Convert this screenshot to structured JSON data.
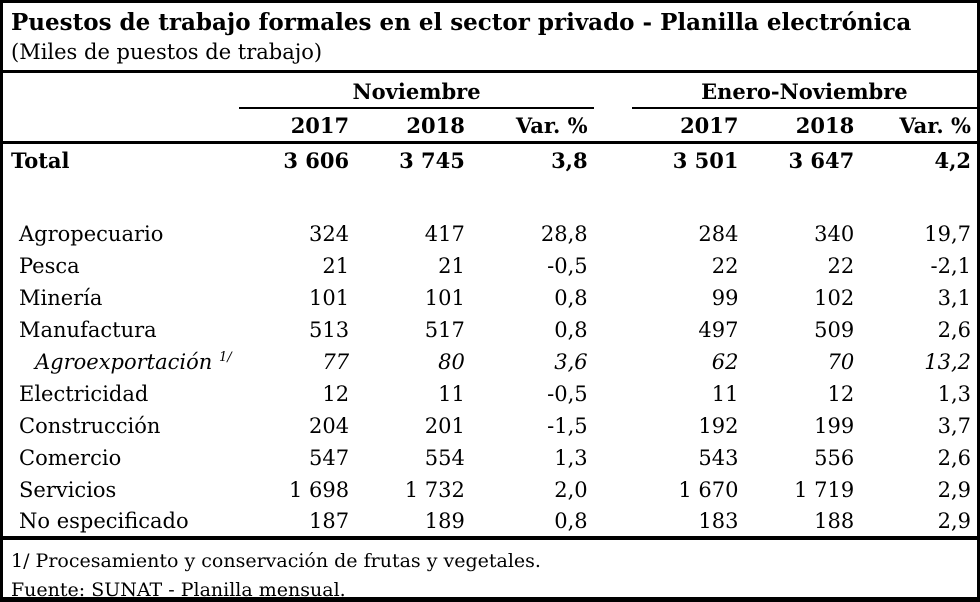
{
  "meta": {
    "title": "Puestos de trabajo formales en el sector privado - Planilla electrónica",
    "subtitle": "(Miles de puestos de trabajo)"
  },
  "table": {
    "group_headers": {
      "noviembre": "Noviembre",
      "enero_noviembre": "Enero-Noviembre"
    },
    "column_headers": [
      "2017",
      "2018",
      "Var. %"
    ],
    "rows": [
      {
        "label": "Total",
        "values": [
          "3 606",
          "3 745",
          "3,8",
          "3 501",
          "3 647",
          "4,2"
        ]
      },
      {
        "label": "Agropecuario",
        "values": [
          "324",
          "417",
          "28,8",
          "284",
          "340",
          "19,7"
        ]
      },
      {
        "label": "Pesca",
        "values": [
          "21",
          "21",
          "-0,5",
          "22",
          "22",
          "-2,1"
        ]
      },
      {
        "label": "Minería",
        "values": [
          "101",
          "101",
          "0,8",
          "99",
          "102",
          "3,1"
        ]
      },
      {
        "label": "Manufactura",
        "values": [
          "513",
          "517",
          "0,8",
          "497",
          "509",
          "2,6"
        ]
      },
      {
        "label": "Agroexportación",
        "label_sup": "1/",
        "values": [
          "77",
          "80",
          "3,6",
          "62",
          "70",
          "13,2"
        ]
      },
      {
        "label": "Electricidad",
        "values": [
          "12",
          "11",
          "-0,5",
          "11",
          "12",
          "1,3"
        ]
      },
      {
        "label": "Construcción",
        "values": [
          "204",
          "201",
          "-1,5",
          "192",
          "199",
          "3,7"
        ]
      },
      {
        "label": "Comercio",
        "values": [
          "547",
          "554",
          "1,3",
          "543",
          "556",
          "2,6"
        ]
      },
      {
        "label": "Servicios",
        "values": [
          "1 698",
          "1 732",
          "2,0",
          "1 670",
          "1 719",
          "2,9"
        ]
      },
      {
        "label": "No especificado",
        "values": [
          "187",
          "189",
          "0,8",
          "183",
          "188",
          "2,9"
        ]
      }
    ]
  },
  "footnotes": {
    "note1": "1/ Procesamiento y conservación de frutas y vegetales.",
    "source": "Fuente: SUNAT - Planilla mensual."
  },
  "colors": {
    "text": "#000000",
    "background": "#ffffff",
    "border": "#000000"
  }
}
